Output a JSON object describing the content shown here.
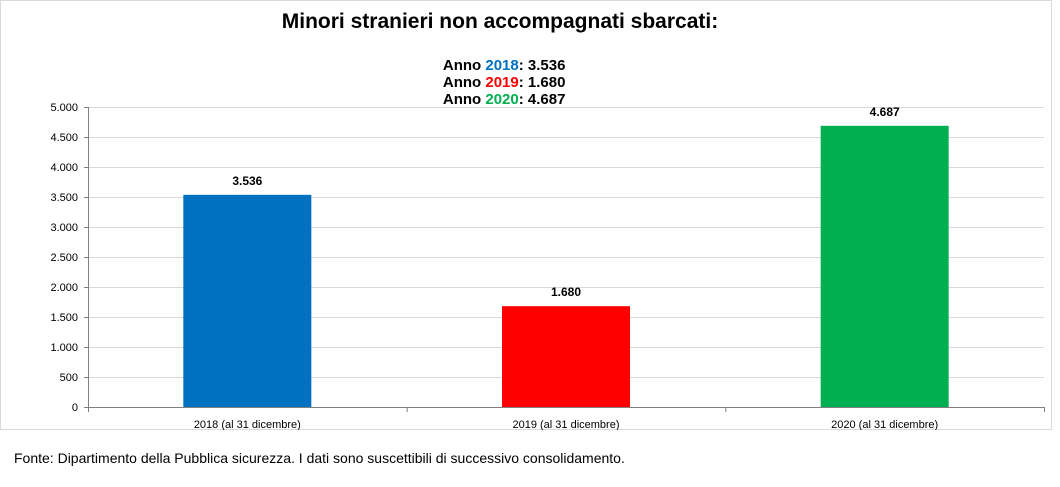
{
  "chart_data": {
    "type": "bar",
    "title": "Minori stranieri non accompagnati sbarcati:",
    "subtitle": [
      {
        "prefix": "Anno ",
        "year": "2018",
        "suffix": ": 3.536",
        "year_color": "#0070C0"
      },
      {
        "prefix": "Anno ",
        "year": "2019",
        "suffix": ": 1.680",
        "year_color": "#FF0000"
      },
      {
        "prefix": "Anno ",
        "year": "2020",
        "suffix": ": 4.687",
        "year_color": "#00B050"
      }
    ],
    "categories": [
      "2018 (al 31 dicembre)",
      "2019 (al 31 dicembre)",
      "2020 (al 31 dicembre)"
    ],
    "values": [
      3536,
      1680,
      4687
    ],
    "data_labels": [
      "3.536",
      "1.680",
      "4.687"
    ],
    "bar_colors": [
      "#0070C0",
      "#FF0000",
      "#00B050"
    ],
    "ylim": [
      0,
      5000
    ],
    "yticks": [
      0,
      500,
      1000,
      1500,
      2000,
      2500,
      3000,
      3500,
      4000,
      4500,
      5000
    ],
    "ytick_labels": [
      "0",
      "500",
      "1.000",
      "1.500",
      "2.000",
      "2.500",
      "3.000",
      "3.500",
      "4.000",
      "4.500",
      "5.000"
    ],
    "grid": true,
    "legend": "none"
  },
  "source_note": "Fonte: Dipartimento della Pubblica sicurezza. I dati sono suscettibili di successivo consolidamento."
}
